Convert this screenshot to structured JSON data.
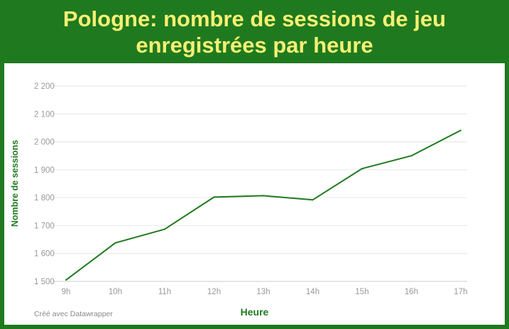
{
  "chart_data": {
    "type": "line",
    "title": "Pologne: nombre de sessions de jeu enregistrées par heure",
    "xlabel": "Heure",
    "ylabel": "Nombre de sessions",
    "categories": [
      "9h",
      "10h",
      "11h",
      "12h",
      "13h",
      "14h",
      "15h",
      "16h",
      "17h"
    ],
    "values": [
      1505,
      1638,
      1687,
      1802,
      1807,
      1792,
      1904,
      1950,
      2041
    ],
    "yticks": [
      1500,
      1600,
      1700,
      1800,
      1900,
      2000,
      2100,
      2200
    ],
    "ytick_labels": [
      "1 500",
      "1 600",
      "1 700",
      "1 800",
      "1 900",
      "2 000",
      "2 100",
      "2 200"
    ],
    "ylim": [
      1500,
      2200
    ],
    "grid": true,
    "line_color": "#1f7a1f"
  },
  "credit": "Créé avec Datawrapper",
  "colors": {
    "frame": "#1f7a1f",
    "title": "#f8ef74"
  }
}
